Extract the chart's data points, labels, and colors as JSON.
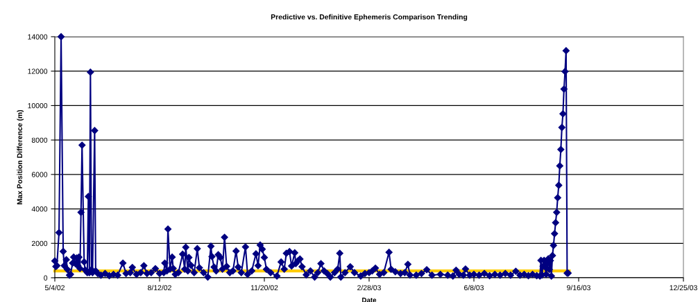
{
  "chart_data": {
    "type": "line",
    "title": "Predictive vs. Definitive Ephemeris Comparison Trending",
    "xlabel": "Date",
    "ylabel": "Max Position Difference (m)",
    "xlim": [
      "2002-05-04",
      "2003-12-25"
    ],
    "xticks": [
      {
        "value": "2002-05-04",
        "label": "5/4/02"
      },
      {
        "value": "2002-08-12",
        "label": "8/12/02"
      },
      {
        "value": "2002-11-20",
        "label": "11/20/02"
      },
      {
        "value": "2003-02-28",
        "label": "2/28/03"
      },
      {
        "value": "2003-06-08",
        "label": "6/8/03"
      },
      {
        "value": "2003-09-16",
        "label": "9/16/03"
      },
      {
        "value": "2003-12-25",
        "label": "12/25/03"
      }
    ],
    "ylim": [
      0,
      14000
    ],
    "yticks": [
      0,
      2000,
      4000,
      6000,
      8000,
      10000,
      12000,
      14000
    ],
    "grid": "y",
    "legend": false,
    "series": [
      {
        "color": "#ffcc00",
        "marker": "none",
        "x": [
          "2002-05-04",
          "2003-09-07"
        ],
        "values": [
          400,
          400
        ]
      },
      {
        "color": "#000080",
        "marker": "diamond",
        "x": [
          "2002-05-04",
          "2002-05-05",
          "2002-05-06",
          "2002-05-08",
          "2002-05-10",
          "2002-05-12",
          "2002-05-13",
          "2002-05-15",
          "2002-05-16",
          "2002-05-18",
          "2002-05-19",
          "2002-05-21",
          "2002-05-22",
          "2002-05-24",
          "2002-05-25",
          "2002-05-26",
          "2002-05-27",
          "2002-05-28",
          "2002-05-29",
          "2002-05-30",
          "2002-06-01",
          "2002-06-02",
          "2002-06-04",
          "2002-06-05",
          "2002-06-06",
          "2002-06-07",
          "2002-06-08",
          "2002-06-09",
          "2002-06-11",
          "2002-06-12",
          "2002-06-14",
          "2002-06-17",
          "2002-06-21",
          "2002-06-25",
          "2002-06-29",
          "2002-07-03",
          "2002-07-08",
          "2002-07-11",
          "2002-07-15",
          "2002-07-17",
          "2002-07-21",
          "2002-07-25",
          "2002-07-28",
          "2002-07-31",
          "2002-08-04",
          "2002-08-08",
          "2002-08-12",
          "2002-08-16",
          "2002-08-17",
          "2002-08-19",
          "2002-08-20",
          "2002-08-22",
          "2002-08-24",
          "2002-08-25",
          "2002-08-27",
          "2002-08-30",
          "2002-09-03",
          "2002-09-05",
          "2002-09-06",
          "2002-09-08",
          "2002-09-09",
          "2002-09-11",
          "2002-09-14",
          "2002-09-17",
          "2002-09-19",
          "2002-09-23",
          "2002-09-27",
          "2002-09-30",
          "2002-10-01",
          "2002-10-03",
          "2002-10-05",
          "2002-10-07",
          "2002-10-09",
          "2002-10-11",
          "2002-10-13",
          "2002-10-15",
          "2002-10-18",
          "2002-10-21",
          "2002-10-24",
          "2002-10-26",
          "2002-10-29",
          "2002-11-02",
          "2002-11-04",
          "2002-11-08",
          "2002-11-12",
          "2002-11-14",
          "2002-11-16",
          "2002-11-18",
          "2002-11-20",
          "2002-11-22",
          "2002-11-26",
          "2002-12-02",
          "2002-12-06",
          "2002-12-09",
          "2002-12-11",
          "2002-12-14",
          "2002-12-16",
          "2002-12-19",
          "2002-12-20",
          "2002-12-22",
          "2002-12-24",
          "2002-12-26",
          "2002-12-30",
          "2003-01-03",
          "2003-01-07",
          "2003-01-10",
          "2003-01-13",
          "2003-01-16",
          "2003-01-19",
          "2003-01-22",
          "2003-01-26",
          "2003-01-29",
          "2003-01-31",
          "2003-02-01",
          "2003-02-05",
          "2003-02-10",
          "2003-02-14",
          "2003-02-20",
          "2003-02-24",
          "2003-02-28",
          "2003-03-03",
          "2003-03-06",
          "2003-03-10",
          "2003-03-14",
          "2003-03-19",
          "2003-03-21",
          "2003-03-25",
          "2003-03-30",
          "2003-04-03",
          "2003-04-06",
          "2003-04-08",
          "2003-04-14",
          "2003-04-19",
          "2003-04-24",
          "2003-04-29",
          "2003-05-07",
          "2003-05-14",
          "2003-05-19",
          "2003-05-22",
          "2003-05-25",
          "2003-05-29",
          "2003-05-31",
          "2003-06-04",
          "2003-06-08",
          "2003-06-13",
          "2003-06-18",
          "2003-06-23",
          "2003-06-28",
          "2003-07-03",
          "2003-07-08",
          "2003-07-13",
          "2003-07-18",
          "2003-07-22",
          "2003-07-26",
          "2003-07-30",
          "2003-08-03",
          "2003-08-07",
          "2003-08-10",
          "2003-08-11",
          "2003-08-12",
          "2003-08-13",
          "2003-08-14",
          "2003-08-15",
          "2003-08-16",
          "2003-08-17",
          "2003-08-18",
          "2003-08-19",
          "2003-08-20",
          "2003-08-21",
          "2003-08-22",
          "2003-08-23",
          "2003-08-24",
          "2003-08-25",
          "2003-08-26",
          "2003-08-27",
          "2003-08-28",
          "2003-08-29",
          "2003-08-30",
          "2003-08-31",
          "2003-09-01",
          "2003-09-02",
          "2003-09-03",
          "2003-09-04",
          "2003-09-05",
          "2003-09-06"
        ],
        "values": [
          980,
          650,
          700,
          2620,
          14000,
          1530,
          700,
          1050,
          480,
          150,
          200,
          850,
          1200,
          800,
          1150,
          700,
          1200,
          540,
          3800,
          7700,
          920,
          450,
          300,
          4720,
          300,
          11940,
          470,
          300,
          8550,
          400,
          250,
          150,
          250,
          120,
          200,
          150,
          850,
          250,
          300,
          600,
          200,
          300,
          700,
          250,
          300,
          530,
          250,
          300,
          850,
          400,
          2830,
          500,
          1200,
          540,
          200,
          300,
          1370,
          500,
          1770,
          400,
          1180,
          720,
          300,
          1690,
          580,
          300,
          40,
          1830,
          1230,
          620,
          400,
          1340,
          1180,
          500,
          2350,
          660,
          300,
          400,
          1550,
          620,
          300,
          1790,
          200,
          400,
          1390,
          700,
          1900,
          1660,
          1180,
          490,
          300,
          100,
          920,
          500,
          1420,
          1520,
          680,
          1450,
          820,
          980,
          1090,
          640,
          170,
          400,
          40,
          300,
          820,
          400,
          250,
          40,
          300,
          500,
          1420,
          40,
          300,
          640,
          300,
          100,
          250,
          300,
          400,
          560,
          200,
          300,
          1480,
          490,
          350,
          250,
          300,
          780,
          160,
          150,
          250,
          470,
          150,
          200,
          150,
          100,
          440,
          200,
          150,
          510,
          150,
          200,
          150,
          250,
          120,
          200,
          150,
          250,
          150,
          380,
          150,
          200,
          120,
          200,
          120,
          100,
          1010,
          160,
          670,
          1010,
          620,
          200,
          820,
          1100,
          480,
          1000,
          100,
          1290,
          1880,
          2560,
          3200,
          3800,
          4650,
          5370,
          6500,
          7450,
          8730,
          9520,
          10960,
          11980,
          13190,
          270,
          270
        ]
      }
    ]
  }
}
